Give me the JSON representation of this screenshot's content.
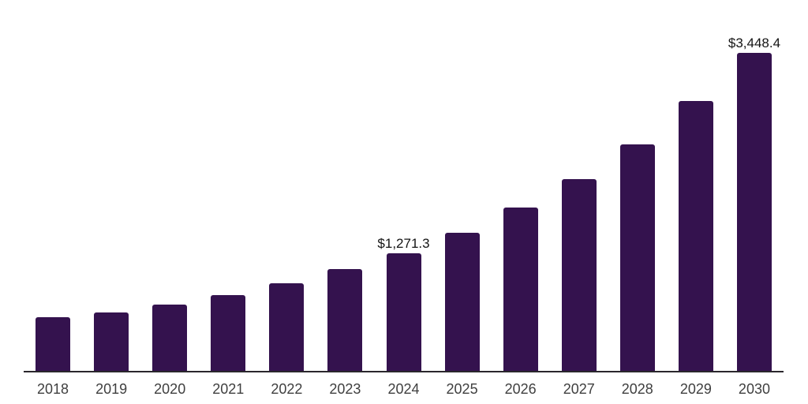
{
  "chart": {
    "background_color": "#ffffff",
    "bar_color": "#34124E",
    "grid_color": "#ededf0",
    "axis_line_color": "#2a272c",
    "tick_label_color": "#3f3f3f",
    "data_label_color": "#141414"
  },
  "chart_data": {
    "type": "bar",
    "title": "",
    "xlabel": "",
    "ylabel": "",
    "categories": [
      "2018",
      "2019",
      "2020",
      "2021",
      "2022",
      "2023",
      "2024",
      "2025",
      "2026",
      "2027",
      "2028",
      "2029",
      "2030"
    ],
    "values": [
      585,
      636,
      716,
      818,
      950,
      1100,
      1271.3,
      1500,
      1770,
      2080,
      2455,
      2925,
      3448.4
    ],
    "ylim": [
      0,
      4000
    ],
    "gridline_step": 500,
    "grid": "horizontal",
    "legend": "none",
    "y_tick_labels": "hidden",
    "data_labels": [
      {
        "category": "2024",
        "text": "$1,271.3"
      },
      {
        "category": "2030",
        "text": "$3,448.4"
      }
    ]
  }
}
